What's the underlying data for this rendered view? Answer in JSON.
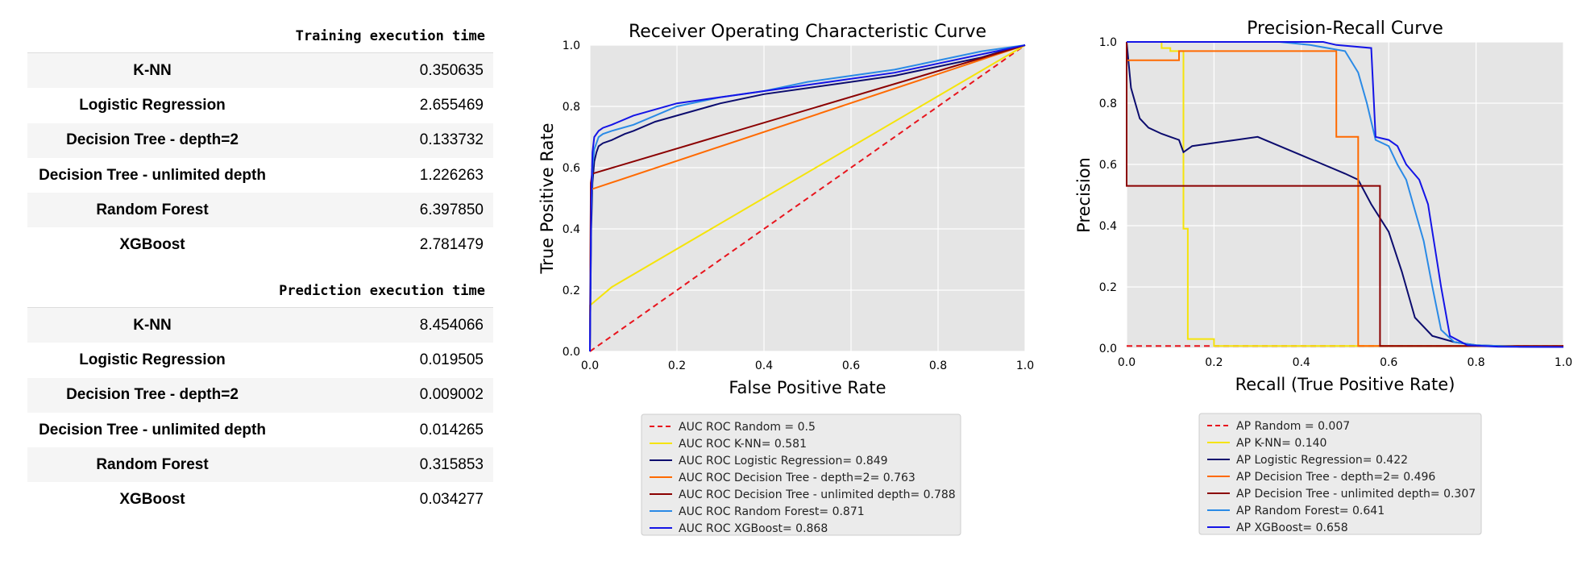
{
  "tables": [
    {
      "title": "Training execution time",
      "rows": [
        {
          "name": "K-NN",
          "value": "0.350635"
        },
        {
          "name": "Logistic Regression",
          "value": "2.655469"
        },
        {
          "name": "Decision Tree - depth=2",
          "value": "0.133732"
        },
        {
          "name": "Decision Tree - unlimited depth",
          "value": "1.226263"
        },
        {
          "name": "Random Forest",
          "value": "6.397850"
        },
        {
          "name": "XGBoost",
          "value": "2.781479"
        }
      ]
    },
    {
      "title": "Prediction execution time",
      "rows": [
        {
          "name": "K-NN",
          "value": "8.454066"
        },
        {
          "name": "Logistic Regression",
          "value": "0.019505"
        },
        {
          "name": "Decision Tree - depth=2",
          "value": "0.009002"
        },
        {
          "name": "Decision Tree - unlimited depth",
          "value": "0.014265"
        },
        {
          "name": "Random Forest",
          "value": "0.315853"
        },
        {
          "name": "XGBoost",
          "value": "0.034277"
        }
      ]
    }
  ],
  "chart_data": [
    {
      "type": "line",
      "title": "Receiver Operating Characteristic Curve",
      "xlabel": "False Positive Rate",
      "ylabel": "True Positive Rate",
      "xlim": [
        0,
        1
      ],
      "ylim": [
        0,
        1
      ],
      "xticks": [
        "0.0",
        "0.2",
        "0.4",
        "0.6",
        "0.8",
        "1.0"
      ],
      "yticks": [
        "0.0",
        "0.2",
        "0.4",
        "0.6",
        "0.8",
        "1.0"
      ],
      "grid": true,
      "legend": "below",
      "series": [
        {
          "name": "AUC ROC Random = 0.5",
          "color": "#e8141d",
          "dash": true,
          "x": [
            0,
            1
          ],
          "y": [
            0,
            1
          ]
        },
        {
          "name": "AUC ROC K-NN= 0.581",
          "color": "#f5e40a",
          "x": [
            0,
            0,
            0.05,
            1
          ],
          "y": [
            0,
            0.15,
            0.21,
            1
          ]
        },
        {
          "name": "AUC ROC Logistic Regression= 0.849",
          "color": "#0c0c6e",
          "x": [
            0,
            0.003,
            0.006,
            0.01,
            0.015,
            0.02,
            0.03,
            0.05,
            0.08,
            0.1,
            0.15,
            0.2,
            0.3,
            0.4,
            0.5,
            0.6,
            0.7,
            0.8,
            0.9,
            0.97,
            1
          ],
          "y": [
            0,
            0.4,
            0.55,
            0.62,
            0.65,
            0.67,
            0.68,
            0.69,
            0.71,
            0.72,
            0.75,
            0.77,
            0.81,
            0.84,
            0.86,
            0.88,
            0.9,
            0.93,
            0.96,
            0.99,
            1
          ]
        },
        {
          "name": "AUC ROC Decision Tree - depth=2= 0.763",
          "color": "#ff6a00",
          "x": [
            0,
            0.002,
            0.005,
            1
          ],
          "y": [
            0,
            0.5,
            0.53,
            1
          ]
        },
        {
          "name": "AUC ROC Decision Tree - unlimited depth= 0.788",
          "color": "#8b0000",
          "x": [
            0,
            0.002,
            0.005,
            1
          ],
          "y": [
            0,
            0.55,
            0.58,
            1
          ]
        },
        {
          "name": "AUC ROC Random Forest= 0.871",
          "color": "#2a8ae6",
          "x": [
            0,
            0.003,
            0.006,
            0.01,
            0.02,
            0.03,
            0.05,
            0.1,
            0.15,
            0.2,
            0.3,
            0.4,
            0.5,
            0.6,
            0.7,
            0.8,
            0.9,
            1
          ],
          "y": [
            0,
            0.45,
            0.6,
            0.66,
            0.7,
            0.71,
            0.72,
            0.74,
            0.77,
            0.8,
            0.83,
            0.85,
            0.88,
            0.9,
            0.92,
            0.95,
            0.98,
            1
          ]
        },
        {
          "name": "AUC ROC XGBoost= 0.868",
          "color": "#1414e6",
          "x": [
            0,
            0.003,
            0.006,
            0.01,
            0.02,
            0.03,
            0.05,
            0.1,
            0.15,
            0.2,
            0.3,
            0.4,
            0.5,
            0.6,
            0.7,
            0.8,
            0.9,
            1
          ],
          "y": [
            0,
            0.5,
            0.65,
            0.7,
            0.72,
            0.73,
            0.74,
            0.77,
            0.79,
            0.81,
            0.83,
            0.85,
            0.87,
            0.89,
            0.91,
            0.94,
            0.97,
            1
          ]
        }
      ]
    },
    {
      "type": "line",
      "title": "Precision-Recall Curve",
      "xlabel": "Recall (True Positive Rate)",
      "ylabel": "Precision",
      "xlim": [
        0,
        1
      ],
      "ylim": [
        0,
        1
      ],
      "xticks": [
        "0.0",
        "0.2",
        "0.4",
        "0.6",
        "0.8",
        "1.0"
      ],
      "yticks": [
        "0.0",
        "0.2",
        "0.4",
        "0.6",
        "0.8",
        "1.0"
      ],
      "grid": true,
      "legend": "below",
      "series": [
        {
          "name": "AP Random = 0.007",
          "color": "#e8141d",
          "dash": true,
          "x": [
            0,
            1
          ],
          "y": [
            0.007,
            0.007
          ]
        },
        {
          "name": "AP K-NN= 0.140",
          "color": "#f5e40a",
          "x": [
            0,
            0.08,
            0.08,
            0.1,
            0.1,
            0.13,
            0.13,
            0.14,
            0.14,
            0.2,
            0.2,
            1
          ],
          "y": [
            1,
            1,
            0.98,
            0.98,
            0.97,
            0.97,
            0.39,
            0.39,
            0.03,
            0.03,
            0.007,
            0.007
          ]
        },
        {
          "name": "AP Logistic Regression= 0.422",
          "color": "#0c0c6e",
          "x": [
            0,
            0.01,
            0.02,
            0.03,
            0.05,
            0.08,
            0.1,
            0.12,
            0.13,
            0.15,
            0.2,
            0.25,
            0.3,
            0.35,
            0.4,
            0.45,
            0.5,
            0.53,
            0.56,
            0.6,
            0.63,
            0.66,
            0.7,
            0.75,
            0.8,
            0.9,
            1
          ],
          "y": [
            1,
            0.85,
            0.8,
            0.75,
            0.72,
            0.7,
            0.69,
            0.68,
            0.64,
            0.66,
            0.67,
            0.68,
            0.69,
            0.66,
            0.63,
            0.6,
            0.57,
            0.55,
            0.47,
            0.38,
            0.25,
            0.1,
            0.04,
            0.02,
            0.01,
            0.005,
            0.004
          ]
        },
        {
          "name": "AP Decision Tree - depth=2= 0.496",
          "color": "#ff6a00",
          "x": [
            0,
            0.12,
            0.12,
            0.48,
            0.48,
            0.53,
            0.53,
            1
          ],
          "y": [
            0.94,
            0.94,
            0.97,
            0.97,
            0.69,
            0.69,
            0.007,
            0.007
          ]
        },
        {
          "name": "AP Decision Tree - unlimited depth= 0.307",
          "color": "#8b0000",
          "x": [
            0,
            0,
            0.58,
            0.58,
            1
          ],
          "y": [
            1,
            0.53,
            0.53,
            0.007,
            0.007
          ]
        },
        {
          "name": "AP Random Forest= 0.641",
          "color": "#2a8ae6",
          "x": [
            0,
            0.35,
            0.42,
            0.5,
            0.53,
            0.55,
            0.57,
            0.6,
            0.62,
            0.64,
            0.66,
            0.68,
            0.7,
            0.72,
            0.75,
            0.8,
            0.9,
            1
          ],
          "y": [
            1,
            1,
            0.99,
            0.97,
            0.9,
            0.8,
            0.68,
            0.66,
            0.6,
            0.55,
            0.45,
            0.35,
            0.2,
            0.06,
            0.02,
            0.01,
            0.005,
            0.004
          ]
        },
        {
          "name": "AP XGBoost= 0.658",
          "color": "#1414e6",
          "x": [
            0,
            0.45,
            0.48,
            0.56,
            0.57,
            0.6,
            0.62,
            0.64,
            0.67,
            0.69,
            0.7,
            0.72,
            0.74,
            0.78,
            0.85,
            1
          ],
          "y": [
            1,
            1,
            0.99,
            0.98,
            0.69,
            0.68,
            0.66,
            0.6,
            0.55,
            0.47,
            0.38,
            0.2,
            0.04,
            0.01,
            0.005,
            0.004
          ]
        }
      ]
    }
  ]
}
